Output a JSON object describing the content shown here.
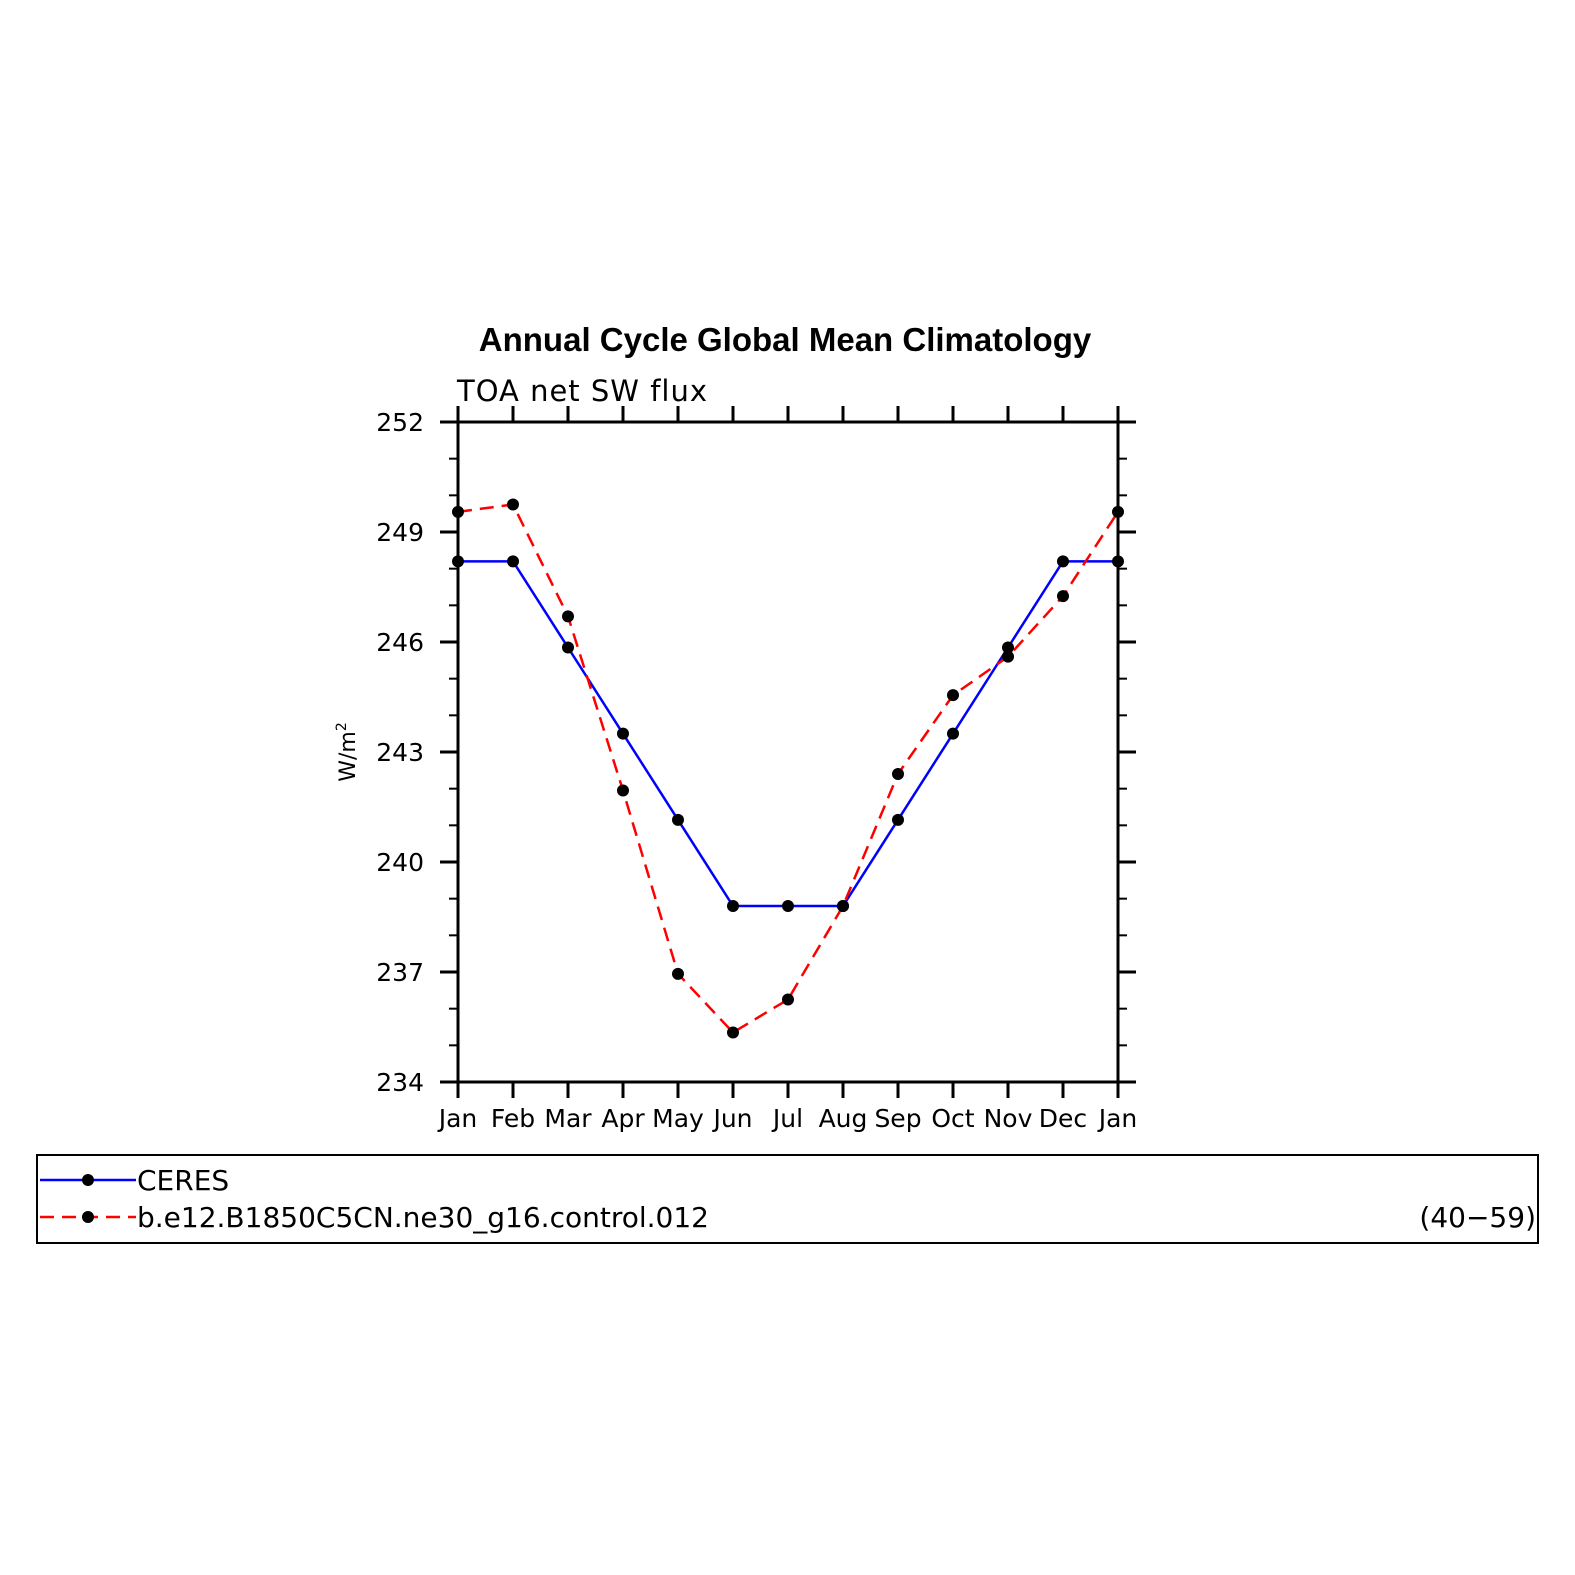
{
  "chart_data": {
    "type": "line",
    "title": "Annual Cycle Global Mean Climatology",
    "subtitle": "TOA net SW flux",
    "ylabel_prefix": "W/m",
    "ylabel_sup": "2",
    "ylim": [
      234,
      252
    ],
    "yticks": [
      234,
      237,
      240,
      243,
      246,
      249,
      252
    ],
    "categories": [
      "Jan",
      "Feb",
      "Mar",
      "Apr",
      "May",
      "Jun",
      "Jul",
      "Aug",
      "Sep",
      "Oct",
      "Nov",
      "Dec",
      "Jan"
    ],
    "series": [
      {
        "name": "CERES",
        "color": "#0000ff",
        "dash": "solid",
        "values": [
          248.2,
          248.2,
          245.85,
          243.5,
          241.15,
          238.8,
          238.8,
          238.8,
          241.15,
          243.5,
          245.85,
          248.2,
          248.2
        ]
      },
      {
        "name": "b.e12.B1850C5CN.ne30_g16.control.012",
        "color": "#ff0000",
        "dash": "dashed",
        "values": [
          249.55,
          249.75,
          246.7,
          241.95,
          236.95,
          235.35,
          236.25,
          238.8,
          242.4,
          244.55,
          245.6,
          247.25,
          249.55
        ]
      }
    ],
    "legend": {
      "placement": "below",
      "years": "(40−59)"
    },
    "grid": false
  }
}
